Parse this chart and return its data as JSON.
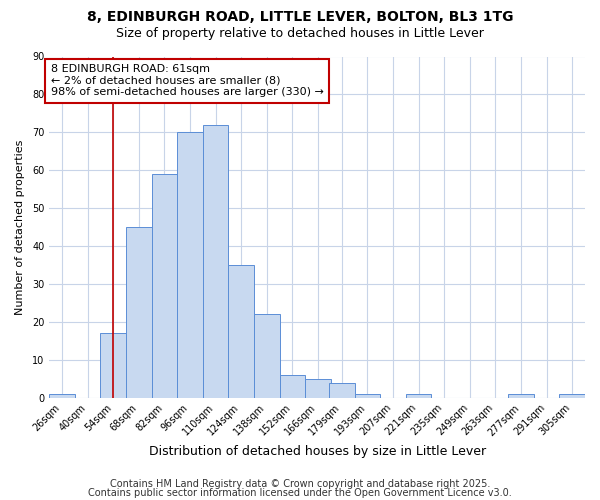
{
  "title_line1": "8, EDINBURGH ROAD, LITTLE LEVER, BOLTON, BL3 1TG",
  "title_line2": "Size of property relative to detached houses in Little Lever",
  "xlabel": "Distribution of detached houses by size in Little Lever",
  "ylabel": "Number of detached properties",
  "bar_edges": [
    26,
    40,
    54,
    68,
    82,
    96,
    110,
    124,
    138,
    152,
    166,
    179,
    193,
    207,
    221,
    235,
    249,
    263,
    277,
    291,
    305
  ],
  "bar_heights": [
    1,
    0,
    17,
    45,
    59,
    70,
    72,
    35,
    22,
    6,
    5,
    4,
    1,
    0,
    1,
    0,
    0,
    0,
    1,
    0,
    1
  ],
  "bar_color": "#c8d9f0",
  "bar_edge_color": "#5b8ed6",
  "property_size": 61,
  "vline_color": "#c00000",
  "annotation_text": "8 EDINBURGH ROAD: 61sqm\n← 2% of detached houses are smaller (8)\n98% of semi-detached houses are larger (330) →",
  "annotation_box_color": "#ffffff",
  "annotation_box_edge_color": "#c00000",
  "ylim": [
    0,
    90
  ],
  "yticks": [
    0,
    10,
    20,
    30,
    40,
    50,
    60,
    70,
    80,
    90
  ],
  "background_color": "#ffffff",
  "plot_bg_color": "#ffffff",
  "grid_color": "#c8d4e8",
  "footer_line1": "Contains HM Land Registry data © Crown copyright and database right 2025.",
  "footer_line2": "Contains public sector information licensed under the Open Government Licence v3.0.",
  "title_fontsize": 10,
  "subtitle_fontsize": 9,
  "xlabel_fontsize": 9,
  "ylabel_fontsize": 8,
  "tick_fontsize": 7,
  "annotation_fontsize": 8,
  "footer_fontsize": 7
}
